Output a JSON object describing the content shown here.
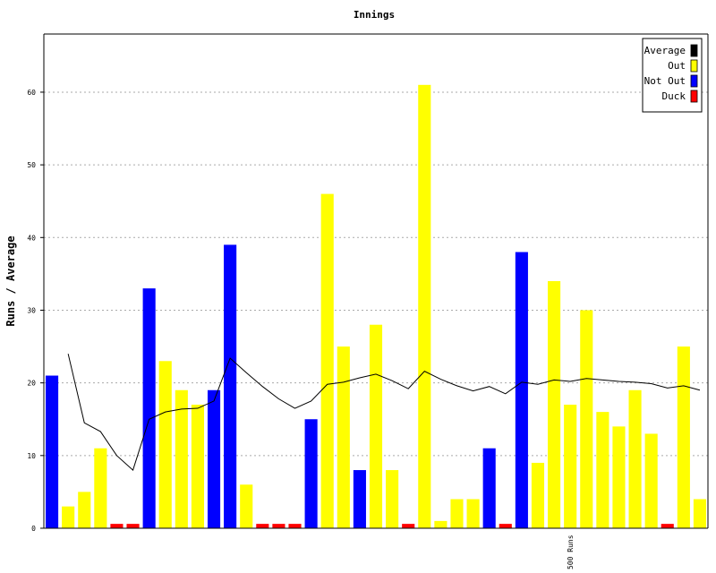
{
  "chart_data": {
    "type": "bar",
    "title": "Innings",
    "ylabel": "Runs / Average",
    "xlabel": "",
    "ylim": [
      0,
      68
    ],
    "yticks": [
      0,
      10,
      20,
      30,
      40,
      50,
      60
    ],
    "grid": true,
    "legend_position": "top-right",
    "legend": [
      {
        "name": "Average",
        "color": "#000000"
      },
      {
        "name": "Out",
        "color": "#ffff00"
      },
      {
        "name": "Not Out",
        "color": "#0000ff"
      },
      {
        "name": "Duck",
        "color": "#ff0000"
      }
    ],
    "innings": [
      {
        "runs": 21,
        "result": "Not Out"
      },
      {
        "runs": 3,
        "result": "Out"
      },
      {
        "runs": 5,
        "result": "Out"
      },
      {
        "runs": 11,
        "result": "Out"
      },
      {
        "runs": 0,
        "result": "Duck"
      },
      {
        "runs": 0,
        "result": "Duck"
      },
      {
        "runs": 33,
        "result": "Not Out"
      },
      {
        "runs": 23,
        "result": "Out"
      },
      {
        "runs": 19,
        "result": "Out"
      },
      {
        "runs": 17,
        "result": "Out"
      },
      {
        "runs": 19,
        "result": "Not Out"
      },
      {
        "runs": 39,
        "result": "Not Out"
      },
      {
        "runs": 6,
        "result": "Out"
      },
      {
        "runs": 0,
        "result": "Duck"
      },
      {
        "runs": 0,
        "result": "Duck"
      },
      {
        "runs": 0,
        "result": "Duck"
      },
      {
        "runs": 15,
        "result": "Not Out"
      },
      {
        "runs": 46,
        "result": "Out"
      },
      {
        "runs": 25,
        "result": "Out"
      },
      {
        "runs": 8,
        "result": "Not Out"
      },
      {
        "runs": 28,
        "result": "Out"
      },
      {
        "runs": 8,
        "result": "Out"
      },
      {
        "runs": 0,
        "result": "Duck"
      },
      {
        "runs": 61,
        "result": "Out"
      },
      {
        "runs": 1,
        "result": "Out"
      },
      {
        "runs": 4,
        "result": "Out"
      },
      {
        "runs": 4,
        "result": "Out"
      },
      {
        "runs": 11,
        "result": "Not Out"
      },
      {
        "runs": 0,
        "result": "Duck"
      },
      {
        "runs": 38,
        "result": "Not Out"
      },
      {
        "runs": 9,
        "result": "Out"
      },
      {
        "runs": 34,
        "result": "Out"
      },
      {
        "runs": 17,
        "result": "Out"
      },
      {
        "runs": 30,
        "result": "Out"
      },
      {
        "runs": 16,
        "result": "Out"
      },
      {
        "runs": 14,
        "result": "Out"
      },
      {
        "runs": 19,
        "result": "Out"
      },
      {
        "runs": 13,
        "result": "Out"
      },
      {
        "runs": 0,
        "result": "Duck"
      },
      {
        "runs": 25,
        "result": "Out"
      },
      {
        "runs": 4,
        "result": "Out"
      }
    ],
    "average": [
      null,
      24,
      14.5,
      13.3,
      10,
      8,
      15,
      16,
      16.4,
      16.5,
      17.5,
      23.4,
      21.4,
      19.5,
      17.8,
      16.5,
      17.5,
      19.8,
      20.1,
      20.7,
      21.2,
      20.3,
      19.2,
      21.6,
      20.5,
      19.6,
      18.9,
      19.5,
      18.5,
      20.1,
      19.8,
      20.4,
      20.2,
      20.6,
      20.4,
      20.2,
      20.1,
      19.9,
      19.3,
      19.6,
      19
    ]
  },
  "annotations": [
    {
      "text": "500 Runs",
      "index": 32
    }
  ]
}
